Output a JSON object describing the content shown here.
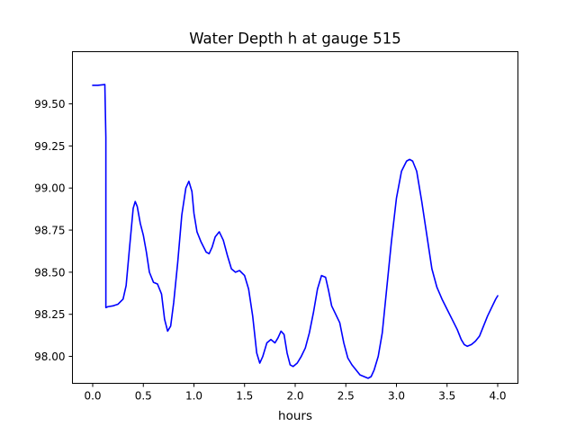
{
  "chart_data": {
    "type": "line",
    "title": "Water Depth h at gauge 515",
    "xlabel": "hours",
    "ylabel": "",
    "xlim": [
      -0.2,
      4.2
    ],
    "ylim": [
      97.84,
      99.81
    ],
    "x_ticks": [
      0.0,
      0.5,
      1.0,
      1.5,
      2.0,
      2.5,
      3.0,
      3.5,
      4.0
    ],
    "x_tick_labels": [
      "0.0",
      "0.5",
      "1.0",
      "1.5",
      "2.0",
      "2.5",
      "3.0",
      "3.5",
      "4.0"
    ],
    "y_ticks": [
      98.0,
      98.25,
      98.5,
      98.75,
      99.0,
      99.25,
      99.5
    ],
    "y_tick_labels": [
      "98.00",
      "98.25",
      "98.50",
      "98.75",
      "99.00",
      "99.25",
      "99.50"
    ],
    "grid": false,
    "colors": {
      "line": "#0000ff",
      "axes": "#000000",
      "background": "#ffffff"
    },
    "series": [
      {
        "color": "#0000ff",
        "x": [
          0.0,
          0.05,
          0.12,
          0.13,
          0.13,
          0.15,
          0.2,
          0.25,
          0.3,
          0.33,
          0.36,
          0.4,
          0.42,
          0.44,
          0.47,
          0.5,
          0.53,
          0.56,
          0.6,
          0.64,
          0.68,
          0.71,
          0.74,
          0.77,
          0.8,
          0.84,
          0.88,
          0.92,
          0.95,
          0.98,
          1.0,
          1.03,
          1.07,
          1.12,
          1.15,
          1.18,
          1.21,
          1.25,
          1.29,
          1.33,
          1.37,
          1.41,
          1.45,
          1.5,
          1.54,
          1.58,
          1.62,
          1.65,
          1.68,
          1.72,
          1.76,
          1.8,
          1.83,
          1.86,
          1.89,
          1.92,
          1.95,
          1.98,
          2.02,
          2.06,
          2.1,
          2.14,
          2.18,
          2.22,
          2.26,
          2.3,
          2.33,
          2.36,
          2.4,
          2.44,
          2.48,
          2.52,
          2.56,
          2.6,
          2.64,
          2.68,
          2.72,
          2.75,
          2.78,
          2.82,
          2.86,
          2.9,
          2.95,
          3.0,
          3.05,
          3.1,
          3.13,
          3.16,
          3.2,
          3.25,
          3.3,
          3.35,
          3.4,
          3.45,
          3.5,
          3.55,
          3.6,
          3.64,
          3.67,
          3.7,
          3.74,
          3.78,
          3.82,
          3.86,
          3.9,
          3.94,
          3.98,
          4.0
        ],
        "y": [
          99.61,
          99.61,
          99.615,
          99.3,
          98.29,
          98.295,
          98.3,
          98.31,
          98.34,
          98.42,
          98.62,
          98.88,
          98.92,
          98.89,
          98.79,
          98.72,
          98.62,
          98.5,
          98.44,
          98.43,
          98.37,
          98.22,
          98.15,
          98.18,
          98.32,
          98.56,
          98.84,
          99.0,
          99.04,
          98.98,
          98.85,
          98.74,
          98.68,
          98.62,
          98.61,
          98.65,
          98.71,
          98.74,
          98.69,
          98.6,
          98.52,
          98.5,
          98.51,
          98.48,
          98.4,
          98.24,
          98.02,
          97.96,
          98.0,
          98.08,
          98.1,
          98.08,
          98.11,
          98.15,
          98.13,
          98.02,
          97.95,
          97.94,
          97.96,
          98.0,
          98.05,
          98.14,
          98.26,
          98.4,
          98.48,
          98.47,
          98.39,
          98.3,
          98.25,
          98.2,
          98.08,
          97.99,
          97.95,
          97.92,
          97.89,
          97.88,
          97.87,
          97.88,
          97.92,
          98.0,
          98.14,
          98.38,
          98.68,
          98.94,
          99.1,
          99.16,
          99.17,
          99.16,
          99.1,
          98.92,
          98.72,
          98.52,
          98.41,
          98.34,
          98.28,
          98.22,
          98.16,
          98.1,
          98.07,
          98.06,
          98.07,
          98.09,
          98.12,
          98.18,
          98.24,
          98.29,
          98.34,
          98.36
        ]
      }
    ]
  }
}
